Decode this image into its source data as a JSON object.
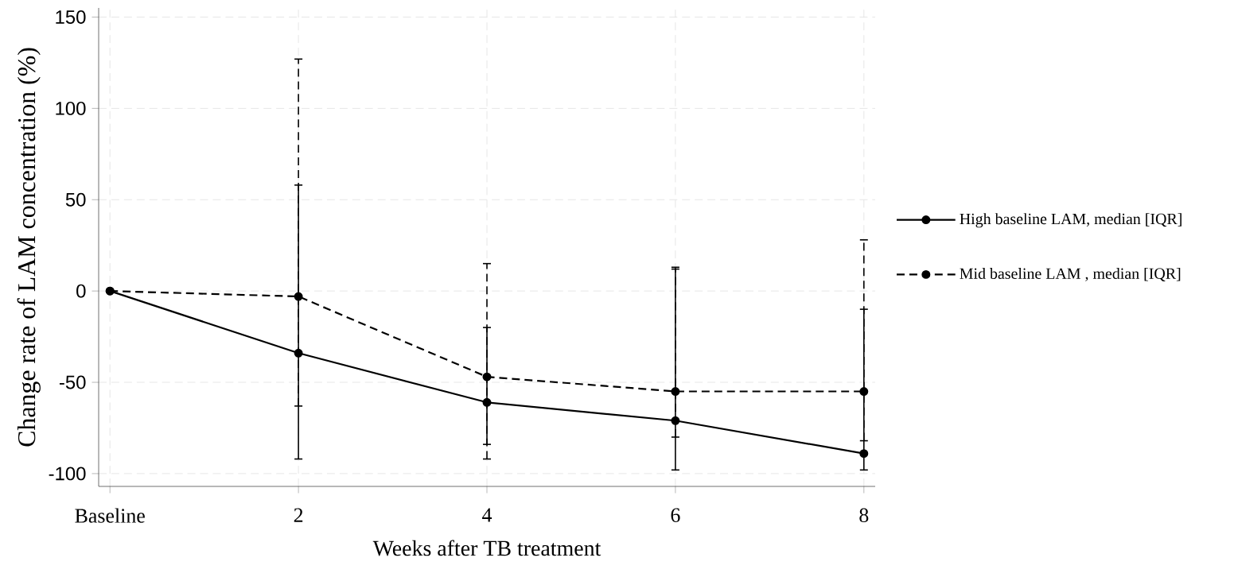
{
  "chart_data": {
    "type": "line",
    "xlabel": "Weeks after TB treatment",
    "ylabel": "Change rate of LAM concentration (%)",
    "categories": [
      "Baseline",
      "2",
      "4",
      "6",
      "8"
    ],
    "ylim": [
      -107,
      155
    ],
    "yticks": [
      -100,
      -50,
      0,
      50,
      100,
      150
    ],
    "grid": true,
    "legend": "right",
    "marker": "circle",
    "series": [
      {
        "name": "High baseline LAM, median [IQR]",
        "color": "#000000",
        "line_style": "solid",
        "values": [
          0,
          -34,
          -61,
          -71,
          -89
        ],
        "errors": [
          null,
          [
            -92,
            58
          ],
          [
            -84,
            -20
          ],
          [
            -98,
            12
          ],
          [
            -98,
            -10
          ]
        ]
      },
      {
        "name": "Mid baseline LAM , median [IQR]",
        "color": "#000000",
        "line_style": "dashed",
        "values": [
          0,
          -3,
          -47,
          -55,
          -55
        ],
        "errors": [
          null,
          [
            -63,
            127
          ],
          [
            -92,
            15
          ],
          [
            -80,
            13
          ],
          [
            -82,
            28
          ]
        ]
      }
    ]
  }
}
